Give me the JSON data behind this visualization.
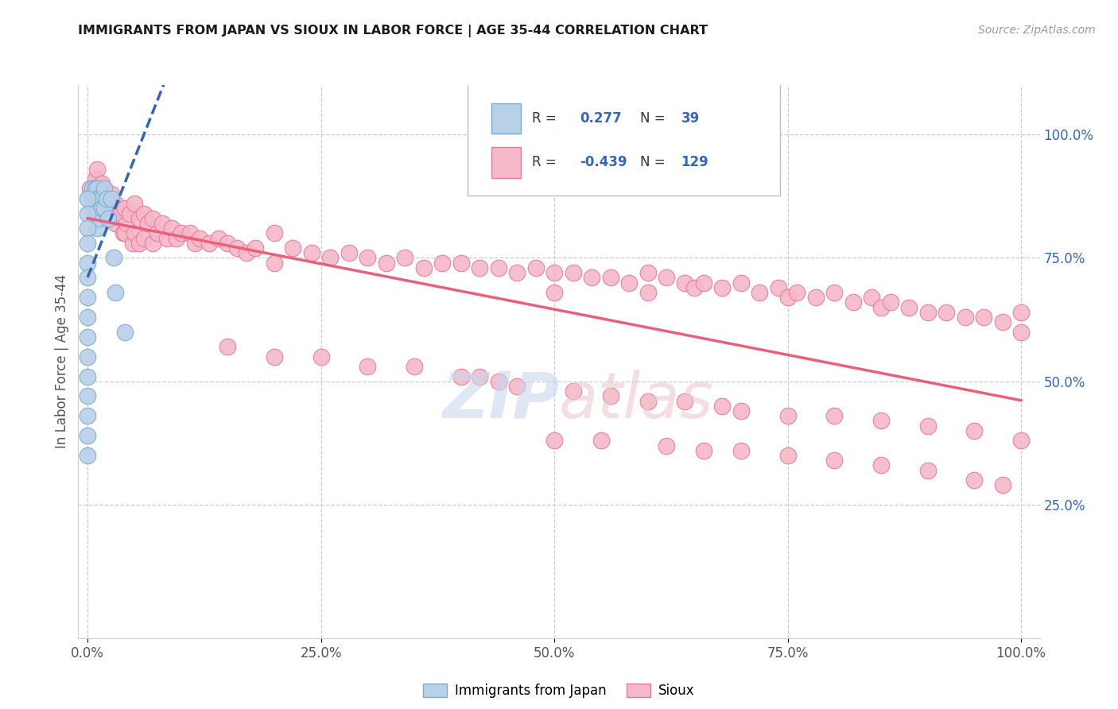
{
  "title": "IMMIGRANTS FROM JAPAN VS SIOUX IN LABOR FORCE | AGE 35-44 CORRELATION CHART",
  "source_text": "Source: ZipAtlas.com",
  "ylabel": "In Labor Force | Age 35-44",
  "xlim": [
    -0.01,
    1.02
  ],
  "ylim": [
    -0.02,
    1.1
  ],
  "xtick_labels": [
    "0.0%",
    "25.0%",
    "50.0%",
    "75.0%",
    "100.0%"
  ],
  "xtick_vals": [
    0.0,
    0.25,
    0.5,
    0.75,
    1.0
  ],
  "ytick_labels": [
    "25.0%",
    "50.0%",
    "75.0%",
    "100.0%"
  ],
  "ytick_vals": [
    0.25,
    0.5,
    0.75,
    1.0
  ],
  "grid_color": "#cccccc",
  "background_color": "#ffffff",
  "japan_color": "#b8d0e8",
  "sioux_color": "#f4b8c8",
  "japan_edge_color": "#7aabcc",
  "sioux_edge_color": "#e87898",
  "japan_R": 0.277,
  "japan_N": 39,
  "sioux_R": -0.439,
  "sioux_N": 129,
  "japan_line_color": "#3366bb",
  "sioux_line_color": "#e8607a",
  "r_label_color": "#3366bb",
  "japan_scatter_x": [
    0.005,
    0.005,
    0.005,
    0.008,
    0.008,
    0.008,
    0.01,
    0.01,
    0.01,
    0.01,
    0.01,
    0.012,
    0.012,
    0.012,
    0.015,
    0.015,
    0.018,
    0.018,
    0.02,
    0.022,
    0.025,
    0.028,
    0.03,
    0.04,
    0.0,
    0.0,
    0.0,
    0.0,
    0.0,
    0.0,
    0.0,
    0.0,
    0.0,
    0.0,
    0.0,
    0.0,
    0.0,
    0.0,
    0.0
  ],
  "japan_scatter_y": [
    0.89,
    0.87,
    0.85,
    0.89,
    0.87,
    0.85,
    0.89,
    0.87,
    0.85,
    0.83,
    0.81,
    0.87,
    0.85,
    0.83,
    0.87,
    0.85,
    0.89,
    0.85,
    0.87,
    0.83,
    0.87,
    0.75,
    0.68,
    0.6,
    0.87,
    0.84,
    0.81,
    0.78,
    0.74,
    0.71,
    0.67,
    0.63,
    0.59,
    0.55,
    0.51,
    0.47,
    0.43,
    0.39,
    0.35
  ],
  "sioux_scatter_x": [
    0.002,
    0.005,
    0.008,
    0.01,
    0.01,
    0.012,
    0.015,
    0.015,
    0.018,
    0.018,
    0.02,
    0.02,
    0.022,
    0.025,
    0.025,
    0.028,
    0.03,
    0.03,
    0.035,
    0.038,
    0.04,
    0.04,
    0.042,
    0.045,
    0.048,
    0.05,
    0.05,
    0.055,
    0.055,
    0.06,
    0.06,
    0.065,
    0.07,
    0.07,
    0.075,
    0.08,
    0.085,
    0.09,
    0.095,
    0.1,
    0.11,
    0.115,
    0.12,
    0.13,
    0.14,
    0.15,
    0.16,
    0.17,
    0.18,
    0.2,
    0.2,
    0.22,
    0.24,
    0.26,
    0.28,
    0.3,
    0.32,
    0.34,
    0.36,
    0.38,
    0.4,
    0.42,
    0.44,
    0.46,
    0.48,
    0.5,
    0.5,
    0.52,
    0.54,
    0.56,
    0.58,
    0.6,
    0.6,
    0.62,
    0.64,
    0.65,
    0.66,
    0.68,
    0.7,
    0.72,
    0.74,
    0.75,
    0.76,
    0.78,
    0.8,
    0.82,
    0.84,
    0.85,
    0.86,
    0.88,
    0.9,
    0.92,
    0.94,
    0.96,
    0.98,
    1.0,
    1.0,
    0.15,
    0.2,
    0.25,
    0.3,
    0.35,
    0.4,
    0.42,
    0.44,
    0.46,
    0.52,
    0.56,
    0.6,
    0.64,
    0.68,
    0.7,
    0.75,
    0.8,
    0.85,
    0.9,
    0.95,
    1.0,
    0.5,
    0.55,
    0.62,
    0.66,
    0.7,
    0.75,
    0.8,
    0.85,
    0.9,
    0.95,
    0.98
  ],
  "sioux_scatter_y": [
    0.89,
    0.87,
    0.91,
    0.93,
    0.88,
    0.87,
    0.9,
    0.85,
    0.89,
    0.86,
    0.87,
    0.84,
    0.86,
    0.88,
    0.83,
    0.85,
    0.86,
    0.82,
    0.84,
    0.8,
    0.85,
    0.8,
    0.82,
    0.84,
    0.78,
    0.86,
    0.8,
    0.83,
    0.78,
    0.84,
    0.79,
    0.82,
    0.83,
    0.78,
    0.8,
    0.82,
    0.79,
    0.81,
    0.79,
    0.8,
    0.8,
    0.78,
    0.79,
    0.78,
    0.79,
    0.78,
    0.77,
    0.76,
    0.77,
    0.8,
    0.74,
    0.77,
    0.76,
    0.75,
    0.76,
    0.75,
    0.74,
    0.75,
    0.73,
    0.74,
    0.74,
    0.73,
    0.73,
    0.72,
    0.73,
    0.72,
    0.68,
    0.72,
    0.71,
    0.71,
    0.7,
    0.72,
    0.68,
    0.71,
    0.7,
    0.69,
    0.7,
    0.69,
    0.7,
    0.68,
    0.69,
    0.67,
    0.68,
    0.67,
    0.68,
    0.66,
    0.67,
    0.65,
    0.66,
    0.65,
    0.64,
    0.64,
    0.63,
    0.63,
    0.62,
    0.64,
    0.6,
    0.57,
    0.55,
    0.55,
    0.53,
    0.53,
    0.51,
    0.51,
    0.5,
    0.49,
    0.48,
    0.47,
    0.46,
    0.46,
    0.45,
    0.44,
    0.43,
    0.43,
    0.42,
    0.41,
    0.4,
    0.38,
    0.38,
    0.38,
    0.37,
    0.36,
    0.36,
    0.35,
    0.34,
    0.33,
    0.32,
    0.3,
    0.29
  ]
}
